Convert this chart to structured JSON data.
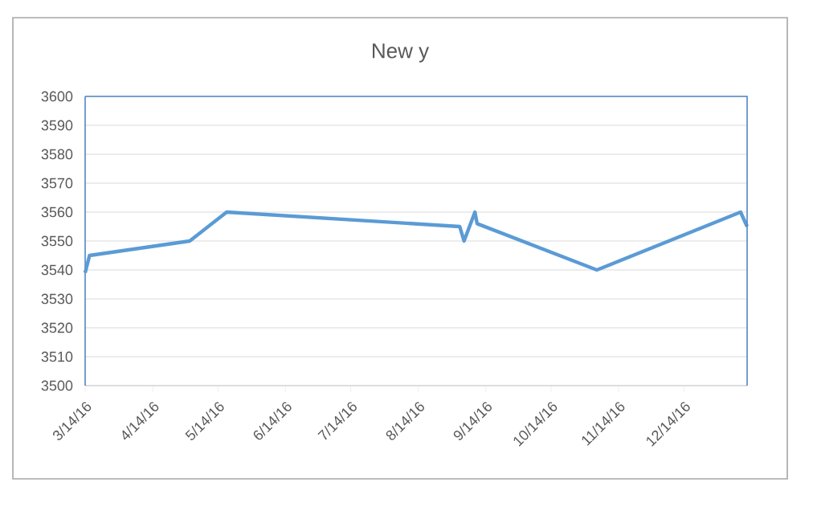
{
  "chart_data": {
    "type": "line",
    "title": "New y",
    "x": [
      "2016-03-14",
      "2016-03-16",
      "2016-05-01",
      "2016-05-18",
      "2016-09-02",
      "2016-09-04",
      "2016-09-09",
      "2016-09-10",
      "2016-11-04",
      "2017-01-09",
      "2017-01-12"
    ],
    "series": [
      {
        "color": "#5b9bd5",
        "values": [
          3539,
          3545,
          3550,
          3560,
          3555,
          3550,
          3560,
          3556,
          3540,
          3560,
          3555
        ]
      }
    ],
    "xlim": [
      "2016-03-14",
      "2017-01-12"
    ],
    "xticks": [
      {
        "value": "2016-03-14",
        "label": "3/14/16"
      },
      {
        "value": "2016-04-14",
        "label": "4/14/16"
      },
      {
        "value": "2016-05-14",
        "label": "5/14/16"
      },
      {
        "value": "2016-06-14",
        "label": "6/14/16"
      },
      {
        "value": "2016-07-14",
        "label": "7/14/16"
      },
      {
        "value": "2016-08-14",
        "label": "8/14/16"
      },
      {
        "value": "2016-09-14",
        "label": "9/14/16"
      },
      {
        "value": "2016-10-14",
        "label": "10/14/16"
      },
      {
        "value": "2016-11-14",
        "label": "11/14/16"
      },
      {
        "value": "2016-12-14",
        "label": "12/14/16"
      }
    ],
    "ylim": [
      3500,
      3600
    ],
    "yticks": [
      3500,
      3510,
      3520,
      3530,
      3540,
      3550,
      3560,
      3570,
      3580,
      3590,
      3600
    ],
    "grid": "y",
    "marker": "none",
    "line_style": "solid"
  }
}
